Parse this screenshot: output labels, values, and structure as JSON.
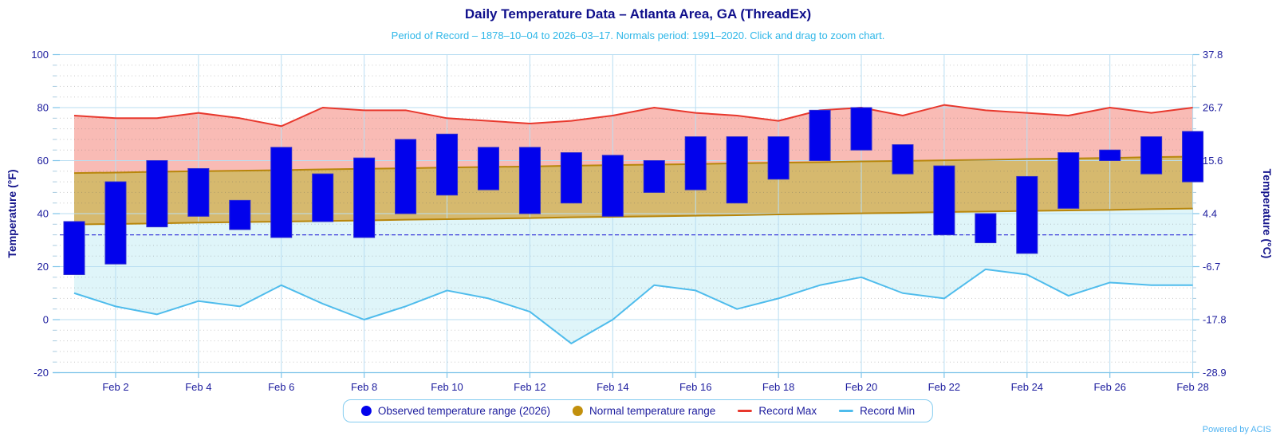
{
  "header": {
    "title": "Daily Temperature Data – Atlanta Area, GA (ThreadEx)",
    "subtitle": "Period of Record – 1878–10–04 to 2026–03–17. Normals period: 1991–2020. Click and drag to zoom chart."
  },
  "footer": {
    "powered_by": "Powered by ACIS"
  },
  "colors": {
    "title": "#10108C",
    "subtitle": "#2FB7E8",
    "axis_text": "#1C1C9E",
    "axis_title": "#15158C",
    "grid_major": "#B9DEF2",
    "grid_axis": "#7EC4EA",
    "legend_border": "#86CDF0",
    "powered_by": "#4FB3F2",
    "freezing_line": "#3A3ADA",
    "observed_bar": "#0202EC",
    "normal_fill": "#D6B96E",
    "normal_line": "#B8860B",
    "record_max_line": "#E8382D",
    "record_max_fill": "#F9BBB5",
    "record_min_line": "#4FBCEC",
    "record_min_fill": "#DFF5F9"
  },
  "legend": {
    "items": [
      {
        "label": "Observed temperature range (2026)",
        "marker": "circle",
        "color": "#0202EC"
      },
      {
        "label": "Normal temperature range",
        "marker": "circle",
        "color": "#C2900D"
      },
      {
        "label": "Record Max",
        "marker": "line",
        "color": "#E8382D"
      },
      {
        "label": "Record Min",
        "marker": "line",
        "color": "#4FBCEC"
      }
    ]
  },
  "chart_data": {
    "type": "area",
    "title": "Daily Temperature Data – Atlanta Area, GA (ThreadEx)",
    "subtitle": "Period of Record – 1878–10–04 to 2026–03–17. Normals period: 1991–2020. Click and drag to zoom chart.",
    "categories": [
      "Feb 1",
      "Feb 2",
      "Feb 3",
      "Feb 4",
      "Feb 5",
      "Feb 6",
      "Feb 7",
      "Feb 8",
      "Feb 9",
      "Feb 10",
      "Feb 11",
      "Feb 12",
      "Feb 13",
      "Feb 14",
      "Feb 15",
      "Feb 16",
      "Feb 17",
      "Feb 18",
      "Feb 19",
      "Feb 20",
      "Feb 21",
      "Feb 22",
      "Feb 23",
      "Feb 24",
      "Feb 25",
      "Feb 26",
      "Feb 27",
      "Feb 28"
    ],
    "x_tick_labels": [
      "Feb 2",
      "Feb 4",
      "Feb 6",
      "Feb 8",
      "Feb 10",
      "Feb 12",
      "Feb 14",
      "Feb 16",
      "Feb 18",
      "Feb 20",
      "Feb 22",
      "Feb 24",
      "Feb 26",
      "Feb 28"
    ],
    "y_axis_left": {
      "label": "Temperature (°F)",
      "ticks": [
        100,
        80,
        60,
        40,
        20,
        0,
        -20
      ],
      "range": [
        -20,
        100
      ],
      "minor_step": 4
    },
    "y_axis_right": {
      "label": "Temperature (°C)",
      "ticks": [
        "37.8",
        "26.7",
        "15.6",
        "4.4",
        "-6.7",
        "-17.8",
        "-28.9"
      ]
    },
    "reference_line_f": 32,
    "grid": {
      "major_horizontal": true,
      "vertical_every_2_days": true,
      "minor_dotted": true
    },
    "legend_position": "bottom",
    "series": [
      {
        "name": "Observed temperature range (2026)",
        "type": "columnrange",
        "color": "#0202EC",
        "low": [
          17,
          21,
          35,
          39,
          34,
          31,
          37,
          31,
          40,
          47,
          49,
          40,
          44,
          39,
          48,
          49,
          44,
          53,
          60,
          64,
          55,
          32,
          29,
          25,
          42,
          60,
          55,
          52
        ],
        "high": [
          37,
          52,
          60,
          57,
          45,
          65,
          55,
          61,
          68,
          70,
          65,
          65,
          63,
          62,
          60,
          69,
          69,
          69,
          79,
          80,
          66,
          58,
          40,
          54,
          63,
          64,
          69,
          71
        ]
      },
      {
        "name": "Normal temperature range",
        "type": "arearange",
        "line_color": "#B8860B",
        "fill_color": "#D6B96E",
        "low": [
          35.9,
          36.1,
          36.3,
          36.6,
          36.8,
          37.0,
          37.2,
          37.4,
          37.7,
          37.9,
          38.1,
          38.3,
          38.6,
          38.8,
          39.0,
          39.2,
          39.4,
          39.7,
          39.9,
          40.1,
          40.3,
          40.6,
          40.8,
          41.0,
          41.2,
          41.4,
          41.7,
          41.9
        ],
        "high": [
          55.3,
          55.5,
          55.8,
          56.0,
          56.2,
          56.4,
          56.7,
          56.9,
          57.1,
          57.4,
          57.6,
          57.8,
          58.1,
          58.3,
          58.5,
          58.7,
          59.0,
          59.2,
          59.4,
          59.7,
          59.9,
          60.1,
          60.3,
          60.6,
          60.8,
          61.0,
          61.3,
          61.5
        ]
      },
      {
        "name": "Record Max",
        "type": "line",
        "color": "#E8382D",
        "fill_color": "#F9BBB5",
        "values": [
          77,
          76,
          76,
          78,
          76,
          73,
          80,
          79,
          79,
          76,
          75,
          74,
          75,
          77,
          80,
          78,
          77,
          75,
          79,
          80,
          77,
          81,
          79,
          78,
          77,
          80,
          78,
          80
        ]
      },
      {
        "name": "Record Min",
        "type": "line",
        "color": "#4FBCEC",
        "fill_color": "#DFF5F9",
        "values": [
          10,
          5,
          2,
          7,
          5,
          13,
          6,
          0,
          5,
          11,
          8,
          3,
          -9,
          0,
          13,
          11,
          4,
          8,
          13,
          16,
          10,
          8,
          19,
          17,
          9,
          14,
          13,
          13
        ]
      }
    ]
  }
}
